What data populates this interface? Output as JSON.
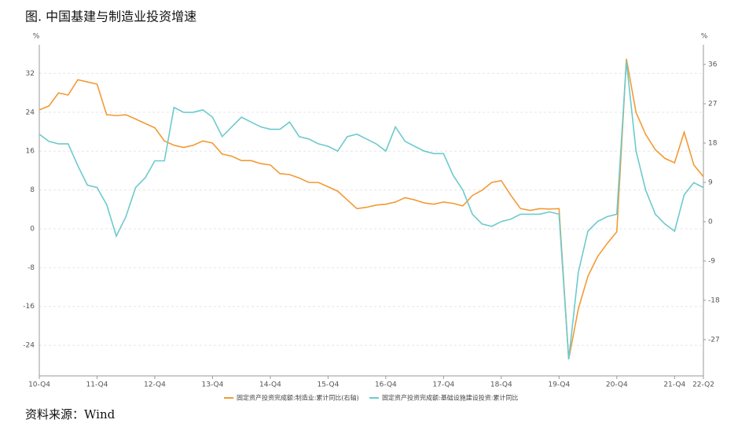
{
  "chart_data": {
    "type": "line",
    "title": "图. 中国基建与制造业投资增速",
    "source": "资料来源：Wind",
    "y_unit": "%",
    "y2_unit": "%",
    "categories": [
      "10-Q4",
      null,
      null,
      null,
      null,
      null,
      "11-Q4",
      null,
      null,
      null,
      null,
      null,
      "12-Q4",
      null,
      null,
      null,
      null,
      null,
      "13-Q4",
      null,
      null,
      null,
      null,
      null,
      "14-Q4",
      null,
      null,
      null,
      null,
      null,
      "15-Q4",
      null,
      null,
      null,
      null,
      null,
      "16-Q4",
      null,
      null,
      null,
      null,
      null,
      "17-Q4",
      null,
      null,
      null,
      null,
      null,
      "18-Q4",
      null,
      null,
      null,
      null,
      null,
      "19-Q4",
      null,
      null,
      null,
      null,
      null,
      "20-Q4",
      null,
      null,
      null,
      null,
      null,
      "21-Q4",
      null,
      null,
      "22-Q2"
    ],
    "series": [
      {
        "name": "固定资产投资完成额:制造业:累计同比(右轴)",
        "color": "#f39a34",
        "axis": "y2",
        "values": [
          25.6,
          26.5,
          29.5,
          29,
          32.5,
          32,
          31.5,
          24.5,
          24.3,
          24.5,
          23.5,
          22.5,
          21.5,
          18.5,
          17.5,
          17,
          17.5,
          18.5,
          18,
          15.5,
          15,
          14,
          14,
          13.3,
          13,
          11,
          10.8,
          10,
          9,
          9,
          8,
          7,
          5,
          3,
          3.3,
          3.8,
          4,
          4.5,
          5.5,
          5,
          4.3,
          4,
          4.5,
          4.2,
          3.6,
          6,
          7.2,
          9,
          9.4,
          6,
          3,
          2.6,
          3,
          2.9,
          3,
          -31.5,
          -20,
          -12.5,
          -8,
          -5,
          -2.3,
          37.3,
          25,
          20,
          16.5,
          14.5,
          13.5,
          20.5,
          13,
          10.3
        ]
      },
      {
        "name": "固定资产投资完成额:基础设施建设投资:累计同比",
        "color": "#6ccacd",
        "values": [
          19.5,
          18,
          17.5,
          17.5,
          13,
          9,
          8.5,
          5,
          -1.5,
          2.5,
          8.5,
          10.5,
          14,
          14,
          25,
          24,
          24,
          24.5,
          23,
          19,
          21,
          23,
          22,
          21,
          20.5,
          20.5,
          22,
          19,
          18.5,
          17.5,
          17,
          16,
          19,
          19.5,
          18.5,
          17.5,
          16,
          21,
          18,
          17,
          16,
          15.5,
          15.5,
          11,
          8,
          3,
          1,
          0.5,
          1.5,
          2,
          3,
          3,
          3,
          3.5,
          3,
          -26.9,
          -9,
          -0.5,
          1.5,
          2.5,
          3,
          34.5,
          16,
          8,
          3,
          1,
          -0.5,
          7,
          9.5,
          8.5
        ]
      }
    ],
    "ylim": [
      -30.3,
      37.9
    ],
    "yticks": [
      -24,
      -16,
      -8,
      0,
      8,
      16,
      24,
      32
    ],
    "y2lim": [
      -35.3,
      40.5
    ],
    "y2ticks": [
      -27,
      -18,
      -9,
      0,
      9,
      18,
      27,
      36
    ],
    "grid": true
  }
}
